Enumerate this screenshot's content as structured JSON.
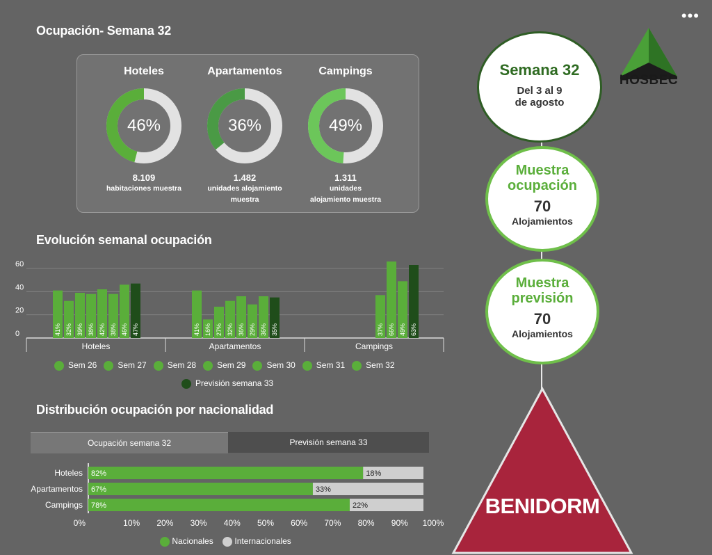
{
  "header": {
    "title": "Ocupación- Semana 32",
    "more_menu": "•••"
  },
  "donuts": [
    {
      "name": "Hoteles",
      "value_label": "46%",
      "percent": 46,
      "count": "8.109",
      "sub_line1": "habitaciones muestra",
      "sub_line2": "",
      "color": "#5aae3a"
    },
    {
      "name": "Apartamentos",
      "value_label": "36%",
      "percent": 36,
      "count": "1.482",
      "sub_line1": "unidades alojamiento",
      "sub_line2": "muestra",
      "color": "#4a9a45"
    },
    {
      "name": "Campings",
      "value_label": "49%",
      "percent": 49,
      "count": "1.311",
      "sub_line1": "unidades",
      "sub_line2": "alojamiento muestra",
      "color": "#6cc65a"
    }
  ],
  "evolution": {
    "title": "Evolución semanal ocupación"
  },
  "chart_data": [
    {
      "type": "bar",
      "title": "Evolución semanal ocupación",
      "categories": [
        "Hoteles",
        "Apartamentos",
        "Campings"
      ],
      "ylim": [
        0,
        60
      ],
      "yticks": [
        "0",
        "20",
        "40",
        "60"
      ],
      "series": [
        {
          "name": "Sem 26",
          "values": [
            41,
            41,
            null
          ],
          "labels": [
            "41%",
            "41%",
            ""
          ]
        },
        {
          "name": "Sem 27",
          "values": [
            32,
            16,
            null
          ],
          "labels": [
            "32%",
            "16%",
            ""
          ]
        },
        {
          "name": "Sem 28",
          "values": [
            39,
            27,
            null
          ],
          "labels": [
            "39%",
            "27%",
            ""
          ]
        },
        {
          "name": "Sem 29",
          "values": [
            38,
            32,
            null
          ],
          "labels": [
            "38%",
            "32%",
            ""
          ]
        },
        {
          "name": "Sem 30",
          "values": [
            42,
            36,
            37
          ],
          "labels": [
            "42%",
            "36%",
            "37%"
          ]
        },
        {
          "name": "Sem 31",
          "values": [
            38,
            29,
            66
          ],
          "labels": [
            "38%",
            "29%",
            "66%"
          ]
        },
        {
          "name": "Sem 32",
          "values": [
            46,
            36,
            49
          ],
          "labels": [
            "46%",
            "36%",
            "49%"
          ]
        },
        {
          "name": "Previsión semana 33",
          "values": [
            47,
            35,
            63
          ],
          "labels": [
            "47%",
            "35%",
            "63%"
          ]
        }
      ],
      "colors": {
        "week": "#5aae3a",
        "forecast": "#1f4d1a"
      }
    },
    {
      "type": "bar",
      "orientation": "horizontal",
      "stacked": true,
      "title": "Distribución ocupación por nacionalidad",
      "categories": [
        "Hoteles",
        "Apartamentos",
        "Campings"
      ],
      "xticks": [
        "0%",
        "10%",
        "20%",
        "30%",
        "40%",
        "50%",
        "60%",
        "70%",
        "80%",
        "90%",
        "100%"
      ],
      "series": [
        {
          "name": "Nacionales",
          "values": [
            82,
            67,
            78
          ],
          "labels": [
            "82%",
            "67%",
            "78%"
          ],
          "color": "#5aae3a"
        },
        {
          "name": "Internacionales",
          "values": [
            18,
            33,
            22
          ],
          "labels": [
            "18%",
            "33%",
            "22%"
          ],
          "color": "#cfcfcf"
        }
      ]
    }
  ],
  "evolution_legend": [
    "Sem 26",
    "Sem 27",
    "Sem 28",
    "Sem 29",
    "Sem 30",
    "Sem 31",
    "Sem 32"
  ],
  "evolution_forecast_legend": "Previsión semana 33",
  "distribution": {
    "title": "Distribución ocupación por nacionalidad",
    "tabs": [
      "Ocupación semana 32",
      "Previsión semana 33"
    ],
    "legend": [
      "Nacionales",
      "Internacionales"
    ]
  },
  "right": {
    "week_title": "Semana 32",
    "week_dates_1": "Del 3 al 9",
    "week_dates_2": "de agosto",
    "sample_occ_title_1": "Muestra",
    "sample_occ_title_2": "ocupación",
    "sample_occ_value": "70",
    "sample_occ_unit": "Alojamientos",
    "sample_fc_title_1": "Muestra",
    "sample_fc_title_2": "previsión",
    "sample_fc_value": "70",
    "sample_fc_unit": "Alojamientos",
    "city": "BENIDORM",
    "logo_text": "HOSBEC"
  }
}
